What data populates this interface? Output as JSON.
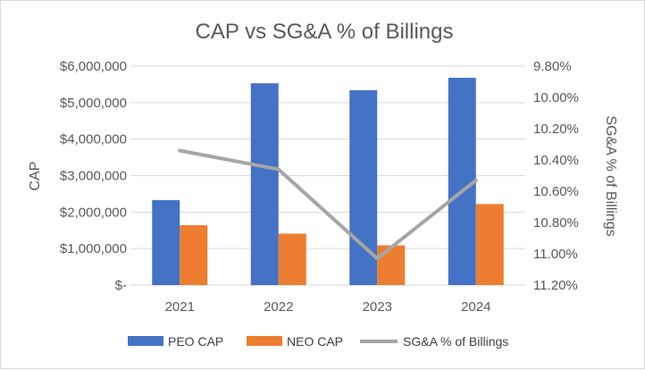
{
  "chart_data": {
    "type": "bar",
    "title": "CAP vs SG&A % of Billings",
    "categories": [
      "2021",
      "2022",
      "2023",
      "2024"
    ],
    "ylabel": "CAP",
    "y2label": "SG&A % of Billings",
    "ylim": [
      0,
      6000000
    ],
    "y_ticks": [
      "$-",
      "$1,000,000",
      "$2,000,000",
      "$3,000,000",
      "$4,000,000",
      "$5,000,000",
      "$6,000,000"
    ],
    "y2lim": [
      9.8,
      11.2
    ],
    "y2_reversed": true,
    "y2_ticks": [
      "9.80%",
      "10.00%",
      "10.20%",
      "10.40%",
      "10.60%",
      "10.80%",
      "11.00%",
      "11.20%"
    ],
    "grid": true,
    "series": [
      {
        "name": "PEO CAP",
        "type": "bar",
        "axis": "left",
        "color": "#4472C4",
        "values": [
          2330000,
          5530000,
          5340000,
          5680000
        ]
      },
      {
        "name": "NEO CAP",
        "type": "bar",
        "axis": "left",
        "color": "#ED7D31",
        "values": [
          1640000,
          1410000,
          1090000,
          2220000
        ]
      },
      {
        "name": "SG&A % of Billings",
        "type": "line",
        "axis": "right",
        "color": "#A5A5A5",
        "values": [
          10.34,
          10.46,
          11.03,
          10.53
        ]
      }
    ],
    "legend_position": "bottom"
  }
}
